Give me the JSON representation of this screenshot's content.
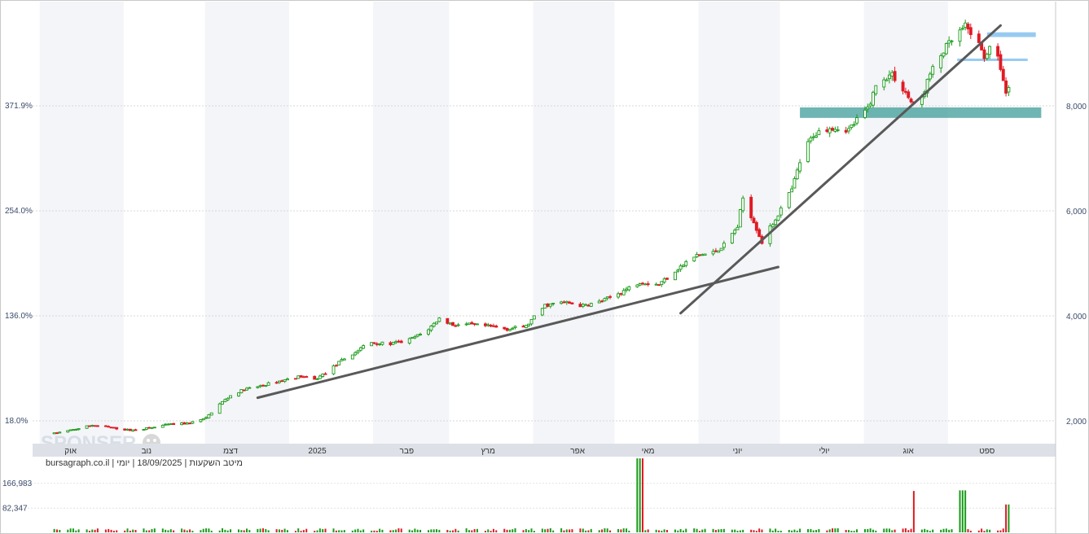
{
  "chart_data": {
    "type": "candlestick",
    "title": "",
    "footer_text": "bursagraph.co.il | מיטב השקעות | 18/09/2025 | יומי",
    "watermark": "SPONSER",
    "left_axis": {
      "ticks": [
        "371.9%",
        "254.0%",
        "136.0%",
        "18.0%"
      ],
      "values": [
        371.9,
        254.0,
        136.0,
        18.0
      ]
    },
    "right_axis": {
      "ticks": [
        "8,000",
        "6,000",
        "4,000",
        "2,000"
      ],
      "values": [
        8000,
        6000,
        4000,
        2000
      ],
      "ylim": [
        1650,
        9800
      ]
    },
    "time_axis": {
      "labels": [
        "אוק",
        "נוב",
        "דצמ",
        "2025",
        "פבר",
        "מרץ",
        "אפר",
        "מאי",
        "יוני",
        "יולי",
        "אוג",
        "ספט"
      ]
    },
    "series": [
      {
        "name": "",
        "points": [
          [
            "2024-10-01",
            1760
          ],
          [
            "2024-10-08",
            1830
          ],
          [
            "2024-10-15",
            1920
          ],
          [
            "2024-10-22",
            1870
          ],
          [
            "2024-10-29",
            1820
          ],
          [
            "2024-11-05",
            1860
          ],
          [
            "2024-11-12",
            1930
          ],
          [
            "2024-11-19",
            1950
          ],
          [
            "2024-11-26",
            2050
          ],
          [
            "2024-11-30",
            2280
          ],
          [
            "2024-12-05",
            2480
          ],
          [
            "2024-12-10",
            2600
          ],
          [
            "2024-12-15",
            2650
          ],
          [
            "2024-12-20",
            2720
          ],
          [
            "2024-12-31",
            2850
          ],
          [
            "2025-01-05",
            2780
          ],
          [
            "2025-01-10",
            2950
          ],
          [
            "2025-01-15",
            3150
          ],
          [
            "2025-01-20",
            3300
          ],
          [
            "2025-01-25",
            3500
          ],
          [
            "2025-02-01",
            3460
          ],
          [
            "2025-02-08",
            3520
          ],
          [
            "2025-02-15",
            3700
          ],
          [
            "2025-02-20",
            3950
          ],
          [
            "2025-02-25",
            3830
          ],
          [
            "2025-03-03",
            3830
          ],
          [
            "2025-03-10",
            3800
          ],
          [
            "2025-03-17",
            3750
          ],
          [
            "2025-03-24",
            3800
          ],
          [
            "2025-03-31",
            4200
          ],
          [
            "2025-04-07",
            4260
          ],
          [
            "2025-04-14",
            4190
          ],
          [
            "2025-04-21",
            4280
          ],
          [
            "2025-04-28",
            4450
          ],
          [
            "2025-05-05",
            4650
          ],
          [
            "2025-05-12",
            4600
          ],
          [
            "2025-05-19",
            4900
          ],
          [
            "2025-05-26",
            5150
          ],
          [
            "2025-06-01",
            5200
          ],
          [
            "2025-06-05",
            5350
          ],
          [
            "2025-06-10",
            5700
          ],
          [
            "2025-06-12",
            6250
          ],
          [
            "2025-06-16",
            5800
          ],
          [
            "2025-06-19",
            5400
          ],
          [
            "2025-06-24",
            5850
          ],
          [
            "2025-06-30",
            6400
          ],
          [
            "2025-07-04",
            7100
          ],
          [
            "2025-07-08",
            7450
          ],
          [
            "2025-07-14",
            7600
          ],
          [
            "2025-07-21",
            7550
          ],
          [
            "2025-07-28",
            7950
          ],
          [
            "2025-08-01",
            8500
          ],
          [
            "2025-08-06",
            8600
          ],
          [
            "2025-08-11",
            8250
          ],
          [
            "2025-08-15",
            7900
          ],
          [
            "2025-08-20",
            8600
          ],
          [
            "2025-08-25",
            9050
          ],
          [
            "2025-08-29",
            9300
          ],
          [
            "2025-09-02",
            9500
          ],
          [
            "2025-09-05",
            9350
          ],
          [
            "2025-09-09",
            8950
          ],
          [
            "2025-09-12",
            9150
          ],
          [
            "2025-09-15",
            8750
          ],
          [
            "2025-09-17",
            8200
          ],
          [
            "2025-09-18",
            8400
          ]
        ]
      }
    ],
    "volume_axis": {
      "ticks": [
        "166,983",
        "82,347"
      ],
      "values": [
        166983,
        82347
      ],
      "ylim": [
        0,
        255000
      ]
    },
    "volume_spikes": [
      [
        "2025-05-05",
        252000
      ],
      [
        "2025-08-15",
        141000
      ],
      [
        "2025-09-01",
        143000
      ],
      [
        "2025-09-18",
        95000
      ]
    ],
    "annotations": {
      "trendlines": [
        {
          "from": [
            "2024-12-15",
            2440
          ],
          "to": [
            "2025-06-25",
            4930
          ]
        },
        {
          "from": [
            "2025-05-20",
            4050
          ],
          "to": [
            "2025-09-15",
            9530
          ]
        }
      ],
      "zones": [
        {
          "from": "2025-07-03",
          "to": "2025-09-30",
          "low": 7770,
          "high": 7970
        },
        {
          "from": "2025-09-10",
          "to": "2025-09-28",
          "low": 9310,
          "high": 9400
        },
        {
          "from": "2025-08-30",
          "to": "2025-09-25",
          "low": 8860,
          "high": 8900
        }
      ]
    },
    "grid": true,
    "colors": {
      "up": "#1a9a1a",
      "down": "#e01b24",
      "zone": "#3e9c9a",
      "zone_light": "#8cc4ef",
      "trendline": "#595959"
    }
  }
}
